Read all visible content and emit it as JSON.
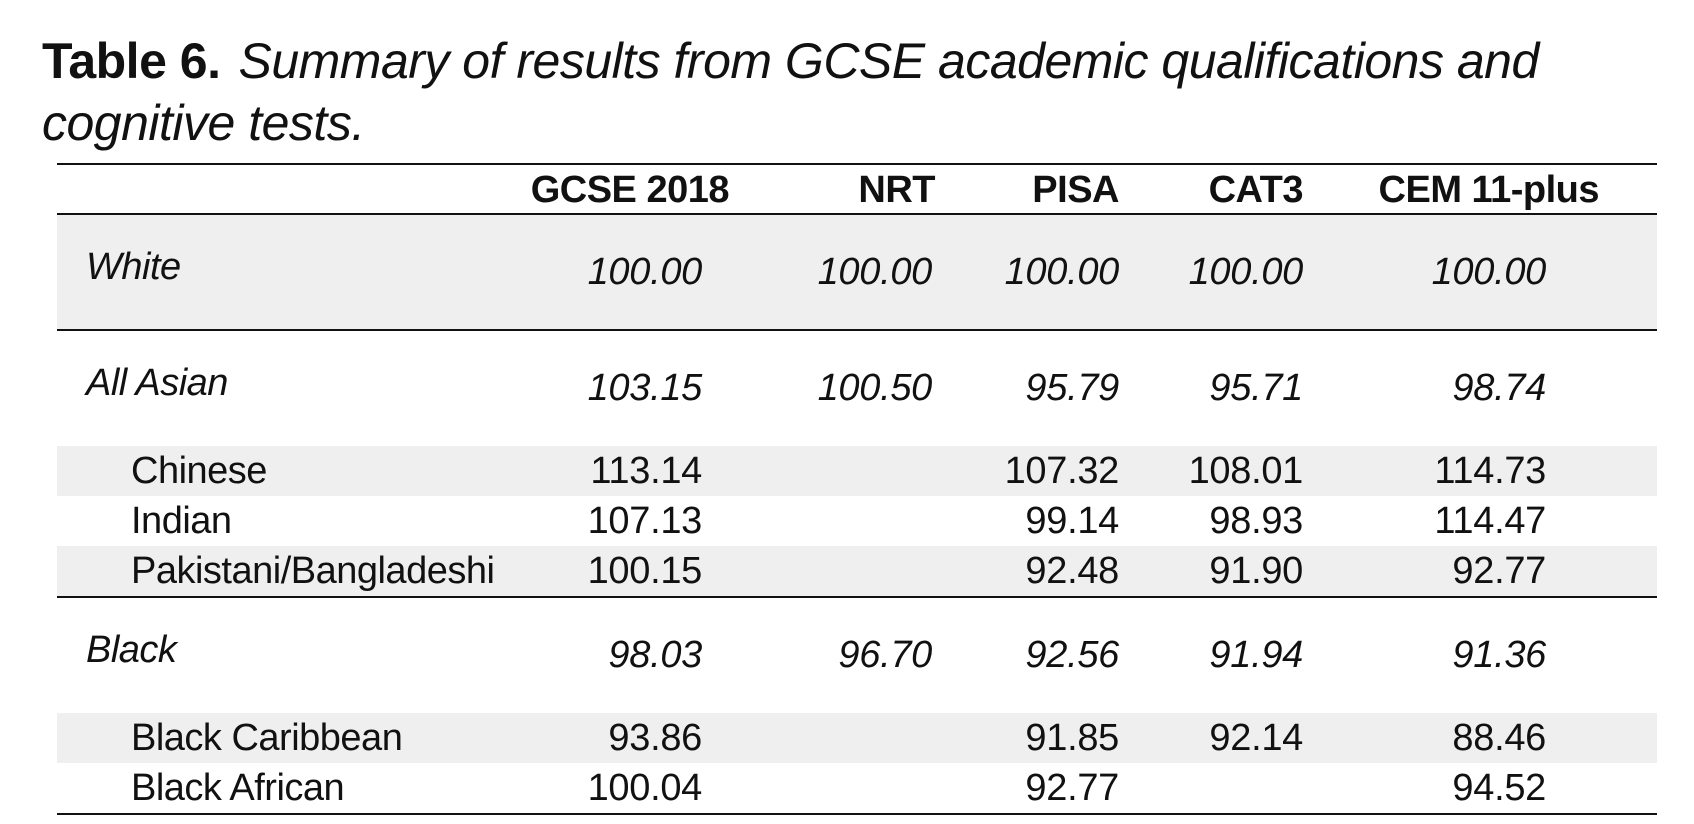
{
  "caption": {
    "label": "Table 6.",
    "title": "Summary of results from GCSE academic qualifications and cognitive tests."
  },
  "table": {
    "columns": [
      "",
      "GCSE 2018",
      "NRT",
      "PISA",
      "CAT3",
      "CEM 11-plus"
    ],
    "rows": [
      {
        "name": "White",
        "values": [
          "100.00",
          "100.00",
          "100.00",
          "100.00",
          "100.00"
        ]
      },
      {
        "name": "All Asian",
        "values": [
          "103.15",
          "100.50",
          "95.79",
          "95.71",
          "98.74"
        ]
      },
      {
        "name": "Chinese",
        "values": [
          "113.14",
          "",
          "107.32",
          "108.01",
          "114.73"
        ]
      },
      {
        "name": "Indian",
        "values": [
          "107.13",
          "",
          "99.14",
          "98.93",
          "114.47"
        ]
      },
      {
        "name": "Pakistani/Bangladeshi",
        "values": [
          "100.15",
          "",
          "92.48",
          "91.90",
          "92.77"
        ]
      },
      {
        "name": "Black",
        "values": [
          "98.03",
          "96.70",
          "92.56",
          "91.94",
          "91.36"
        ]
      },
      {
        "name": "Black Caribbean",
        "values": [
          "93.86",
          "",
          "91.85",
          "92.14",
          "88.46"
        ]
      },
      {
        "name": "Black African",
        "values": [
          "100.04",
          "",
          "92.77",
          "",
          "94.52"
        ]
      }
    ]
  }
}
